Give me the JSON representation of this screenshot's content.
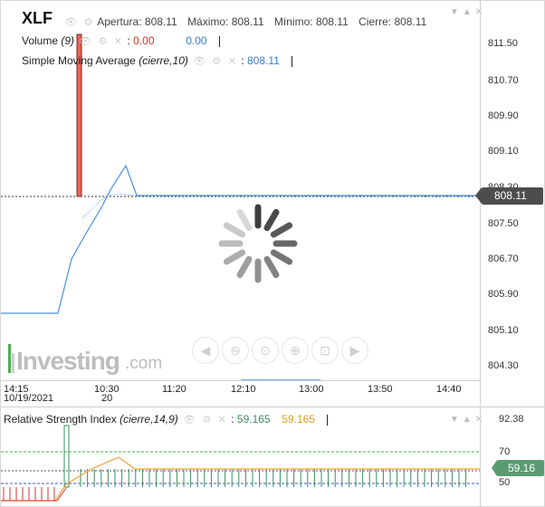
{
  "legend": {
    "ticker": "XLF",
    "open_label": "Apertura:",
    "open": "808.11",
    "high_label": "Máximo:",
    "high": "808.11",
    "low_label": "Mínimo:",
    "low": "808.11",
    "close_label": "Cierre:",
    "close": "808.11"
  },
  "volume": {
    "label": "Volume",
    "params": "(9)",
    "value_red": "0.00",
    "value_blue": "0.00"
  },
  "sma": {
    "label": "Simple Moving Average",
    "params": "(cierre,10)",
    "value": "808.11"
  },
  "price_axis": {
    "ticks": [
      "811.50",
      "810.70",
      "809.90",
      "809.10",
      "808.30",
      "807.50",
      "806.70",
      "805.90",
      "805.10",
      "804.30"
    ],
    "last_price": "808.11"
  },
  "x_axis": {
    "ticks": [
      "14:15",
      "10:30",
      "11:20",
      "12:10",
      "13:00",
      "13:50",
      "14:40"
    ],
    "date": "10/19/2021",
    "day": "20"
  },
  "rsi": {
    "label": "Relative Strength Index",
    "params": "(cierre,14,9)",
    "value_green": "59.165",
    "value_orange": "59.165",
    "axis_ticks": [
      "92.38",
      "70",
      "50"
    ],
    "last_value": "59.16"
  },
  "watermark": {
    "brand": "Investing",
    "suffix": ".com"
  },
  "colors": {
    "price_line": "#4a8fe7",
    "volume_bar": "#e8645a",
    "rsi_overbought": "#3cb043",
    "rsi_oversold": "#3a57c4",
    "rsi_signal": "#f0a030",
    "rsi_bars": "#3a8f5c"
  },
  "toolbar": {
    "buttons": [
      "scroll-left-icon",
      "zoom-out-icon",
      "reset-icon",
      "zoom-in-icon",
      "fit-icon",
      "scroll-right-icon"
    ]
  }
}
